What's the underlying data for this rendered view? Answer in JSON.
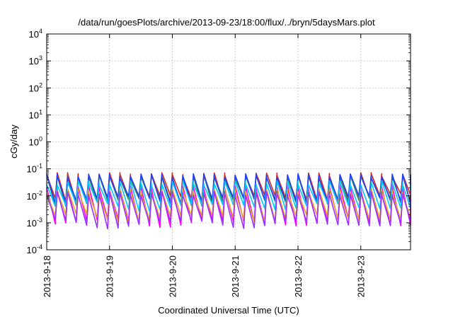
{
  "chart_data": {
    "type": "line",
    "title": "/data/run/goesPlots/archive/2013-09-23/18:00/flux/../bryn/5daysMars.plot",
    "xlabel": "Coordinated Universal Time (UTC)",
    "ylabel": "cGy/day",
    "yscale": "log",
    "ylim": [
      0.0001,
      10000
    ],
    "xlim": [
      "2013-09-18",
      "2013-09-23 19:00"
    ],
    "grid": true,
    "y_ticks": [
      {
        "value": 0.0001,
        "base": "10",
        "exp": "-4"
      },
      {
        "value": 0.001,
        "base": "10",
        "exp": "-3"
      },
      {
        "value": 0.01,
        "base": "10",
        "exp": "-2"
      },
      {
        "value": 0.1,
        "base": "10",
        "exp": "-1"
      },
      {
        "value": 1,
        "base": "10",
        "exp": "0"
      },
      {
        "value": 10,
        "base": "10",
        "exp": "1"
      },
      {
        "value": 100,
        "base": "10",
        "exp": "2"
      },
      {
        "value": 1000,
        "base": "10",
        "exp": "3"
      },
      {
        "value": 10000,
        "base": "10",
        "exp": "4"
      }
    ],
    "x_ticks": [
      "2013-9-18",
      "2013-9-19",
      "2013-9-20",
      "2013-9-21",
      "2013-9-22",
      "2013-9-23"
    ],
    "sawtooth_period_hours": 4,
    "series": [
      {
        "color": "#e2231a",
        "peak": 0.06,
        "trough": 0.008
      },
      {
        "color": "#2e8b57",
        "peak": 0.05,
        "trough": 0.006
      },
      {
        "color": "#1f3fff",
        "peak": 0.055,
        "trough": 0.007
      },
      {
        "color": "#ff00ff",
        "peak": 0.02,
        "trough": 0.001
      },
      {
        "color": "#00c8ff",
        "peak": 0.03,
        "trough": 0.004
      },
      {
        "color": "#e6a817",
        "peak": 0.015,
        "trough": 0.0015
      },
      {
        "color": "#9b30ff",
        "peak": 0.012,
        "trough": 0.0009
      }
    ]
  }
}
